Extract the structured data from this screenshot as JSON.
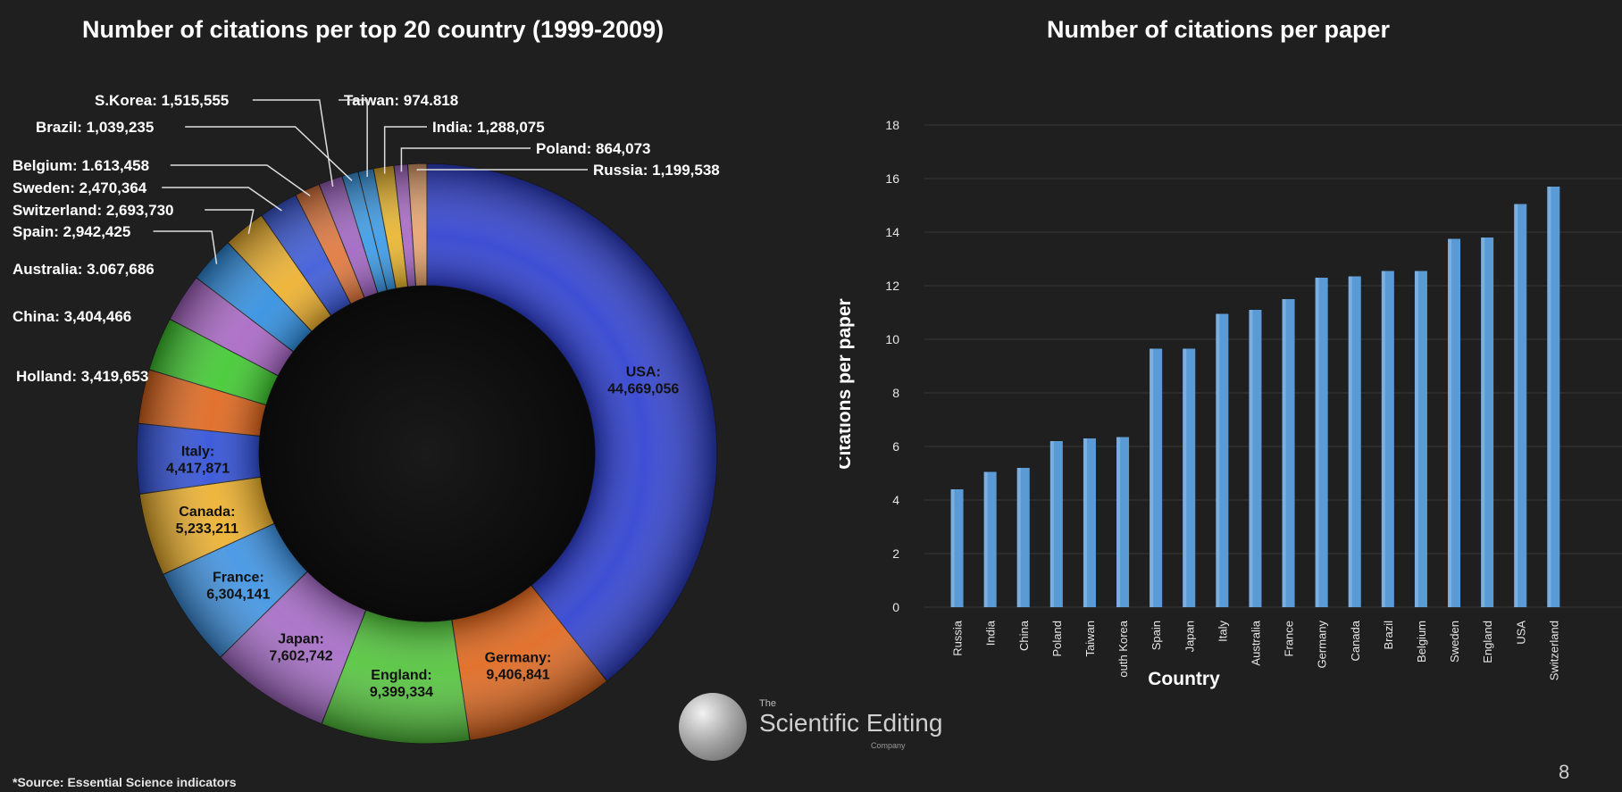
{
  "chart_data": [
    {
      "type": "pie",
      "subtype": "donut",
      "title": "Number of citations per top 20 country (1999-2009)",
      "slices": [
        {
          "label": "USA",
          "value_text": "44,669,056",
          "value": 44669056,
          "color": "#2e3fd0",
          "label_inside": true
        },
        {
          "label": "Germany",
          "value_text": "9,406,841",
          "value": 9406841,
          "color": "#e0661c",
          "label_inside": true
        },
        {
          "label": "England",
          "value_text": "9,399,334",
          "value": 9399334,
          "color": "#52c43b",
          "label_inside": true
        },
        {
          "label": "Japan",
          "value_text": "7,602,742",
          "value": 7602742,
          "color": "#a56bc6",
          "label_inside": true
        },
        {
          "label": "France",
          "value_text": "6,304,141",
          "value": 6304141,
          "color": "#3e93e3",
          "label_inside": true
        },
        {
          "label": "Canada",
          "value_text": "5,233,211",
          "value": 5233211,
          "color": "#edb02c",
          "label_inside": true
        },
        {
          "label": "Italy",
          "value_text": "4,417,871",
          "value": 4417871,
          "color": "#2f4fd8",
          "label_inside": true
        },
        {
          "label": "Holland",
          "value_text": "3,419,653",
          "value": 3419653,
          "color": "#e0661c",
          "label_inside": false
        },
        {
          "label": "China",
          "value_text": "3,404,466",
          "value": 3404466,
          "color": "#3fc92f",
          "label_inside": false
        },
        {
          "label": "Australia",
          "value_text": "3.067,686",
          "value": 3067686,
          "color": "#a866c4",
          "label_inside": false
        },
        {
          "label": "Spain",
          "value_text": "2,942,425",
          "value": 2942425,
          "color": "#2f8ee0",
          "label_inside": false
        },
        {
          "label": "Switzerland",
          "value_text": "2,693,730",
          "value": 2693730,
          "color": "#edb02c",
          "label_inside": false
        },
        {
          "label": "Sweden",
          "value_text": "2,470,364",
          "value": 2470364,
          "color": "#3a58d8",
          "label_inside": false
        },
        {
          "label": "Belgium",
          "value_text": "1.613,458",
          "value": 1613458,
          "color": "#e0763c",
          "label_inside": false
        },
        {
          "label": "S.Korea",
          "value_text": "1,515,555",
          "value": 1515555,
          "color": "#a064c2",
          "label_inside": false
        },
        {
          "label": "Brazil",
          "value_text": "1,039,235",
          "value": 1039235,
          "color": "#3a9ae6",
          "label_inside": false
        },
        {
          "label": "Taiwan",
          "value_text": "974.818",
          "value": 974818,
          "color": "#3a9ae6",
          "label_inside": false
        },
        {
          "label": "India",
          "value_text": "1,288,075",
          "value": 1288075,
          "color": "#e9b52c",
          "label_inside": false
        },
        {
          "label": "Poland",
          "value_text": "864,073",
          "value": 864073,
          "color": "#a868c6",
          "label_inside": false
        },
        {
          "label": "Russia",
          "value_text": "1,199,538",
          "value": 1199538,
          "color": "#e6a36e",
          "label_inside": false
        }
      ]
    },
    {
      "type": "bar",
      "title": "Number of citations per paper",
      "xlabel": "Country",
      "ylabel": "Citations per paper",
      "ylim": [
        0,
        18
      ],
      "yticks": [
        0,
        2,
        4,
        6,
        8,
        10,
        12,
        14,
        16,
        18
      ],
      "grid": true,
      "categories": [
        "Russia",
        "India",
        "China",
        "Poland",
        "Taiwan",
        "outh Korea",
        "Spain",
        "Japan",
        "Italy",
        "Australia",
        "France",
        "Germany",
        "Canada",
        "Brazil",
        "Belgium",
        "Sweden",
        "England",
        "USA",
        "Switzerland"
      ],
      "values": [
        4.4,
        5.05,
        5.2,
        6.2,
        6.3,
        6.35,
        9.65,
        9.65,
        10.95,
        11.1,
        11.5,
        12.3,
        12.35,
        12.55,
        12.55,
        13.75,
        13.8,
        15.05,
        15.7
      ],
      "color": "#5b9bd5"
    }
  ],
  "footer": {
    "source": "*Source: Essential Science indicators",
    "page_number": "8",
    "logo_small": "The",
    "logo_main": "Scientific Editing",
    "logo_company": "Company"
  }
}
